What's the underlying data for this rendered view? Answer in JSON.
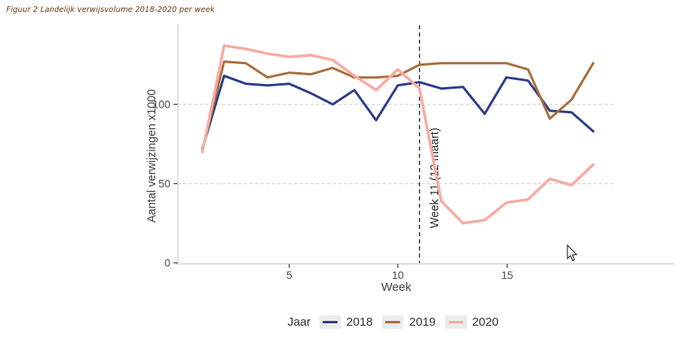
{
  "figure_title": "Figuur 2 Landelijk verwijsvolume 2018-2020 per week",
  "chart_data": {
    "type": "line",
    "title": "Figuur 2 Landelijk verwijsvolume 2018-2020 per week",
    "xlabel": "Week",
    "ylabel": "Aantal verwijzingen x1000",
    "x": [
      1,
      2,
      3,
      4,
      5,
      6,
      7,
      8,
      9,
      10,
      11,
      12,
      13,
      14,
      15,
      16,
      17,
      18,
      19
    ],
    "series": [
      {
        "name": "2018",
        "color": "#2d3d8a",
        "values": [
          72,
          118,
          113,
          112,
          113,
          107,
          100,
          109,
          90,
          112,
          114,
          110,
          111,
          94,
          117,
          115,
          96,
          95,
          83
        ]
      },
      {
        "name": "2019",
        "color": "#aa6e3c",
        "values": [
          71,
          127,
          126,
          117,
          120,
          119,
          123,
          117,
          117,
          118,
          125,
          126,
          126,
          126,
          126,
          122,
          91,
          103,
          126
        ]
      },
      {
        "name": "2020",
        "color": "#f7aca2",
        "values": [
          70,
          137,
          135,
          132,
          130,
          131,
          128,
          118,
          109,
          122,
          110,
          39,
          25,
          27,
          38,
          40,
          53,
          49,
          62
        ]
      }
    ],
    "x_ticks": [
      "5",
      "10",
      "15"
    ],
    "y_ticks": [
      "0",
      "50",
      "100"
    ],
    "xlim": [
      0,
      20
    ],
    "ylim": [
      0,
      140
    ],
    "grid": "horizontal dashed gridlines at y=50 and y=100",
    "legend_position": "bottom",
    "annotation": {
      "text": "Week 11 (12 maart)",
      "x": 11,
      "style": "vertical dashed line with rotated label"
    }
  },
  "legend": {
    "title": "Jaar",
    "entries": [
      "2018",
      "2019",
      "2020"
    ]
  },
  "colors": {
    "series_2018": "#2d3d8a",
    "series_2019": "#aa6e3c",
    "series_2020": "#f7aca2",
    "gridline": "#d9d9d9",
    "axis_line": "#d4d4d4",
    "tick_text": "#4d4d4d",
    "axis_title_text": "#404040",
    "figure_title_text": "#68350a"
  }
}
